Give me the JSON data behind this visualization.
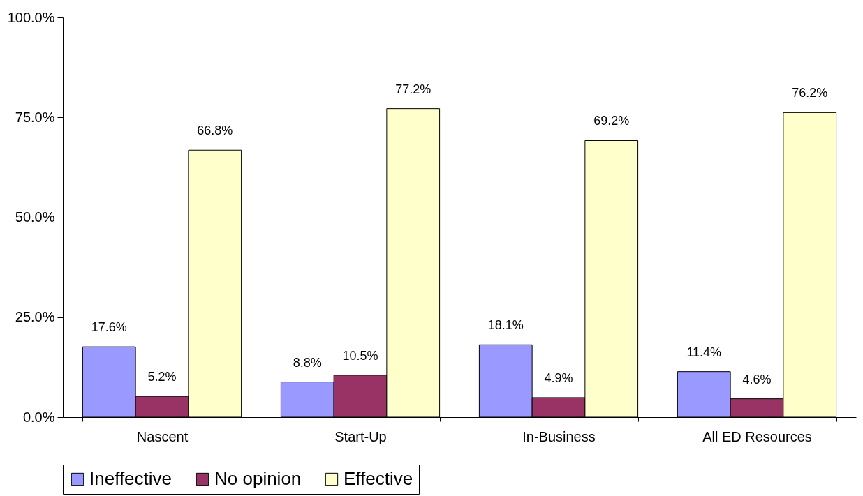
{
  "chart_data": {
    "type": "bar",
    "categories": [
      "Nascent",
      "Start-Up",
      "In-Business",
      "All ED Resources"
    ],
    "series": [
      {
        "name": "Ineffective",
        "color": "#9999ff",
        "values": [
          17.6,
          8.8,
          18.1,
          11.4
        ],
        "value_labels": [
          "17.6%",
          "8.8%",
          "18.1%",
          "11.4%"
        ]
      },
      {
        "name": "No opinion",
        "color": "#993366",
        "values": [
          5.2,
          10.5,
          4.9,
          4.6
        ],
        "value_labels": [
          "5.2%",
          "10.5%",
          "4.9%",
          "4.6%"
        ]
      },
      {
        "name": "Effective",
        "color": "#ffffcc",
        "values": [
          66.8,
          77.2,
          69.2,
          76.2
        ],
        "value_labels": [
          "66.8%",
          "77.2%",
          "69.2%",
          "76.2%"
        ]
      }
    ],
    "ylim": [
      0,
      100
    ],
    "yticks": [
      {
        "value": 0,
        "label": "0.0%"
      },
      {
        "value": 25,
        "label": "25.0%"
      },
      {
        "value": 50,
        "label": "50.0%"
      },
      {
        "value": 75,
        "label": "75.0%"
      },
      {
        "value": 100,
        "label": "100.0%"
      }
    ],
    "grid": false,
    "legend": "bottom"
  }
}
